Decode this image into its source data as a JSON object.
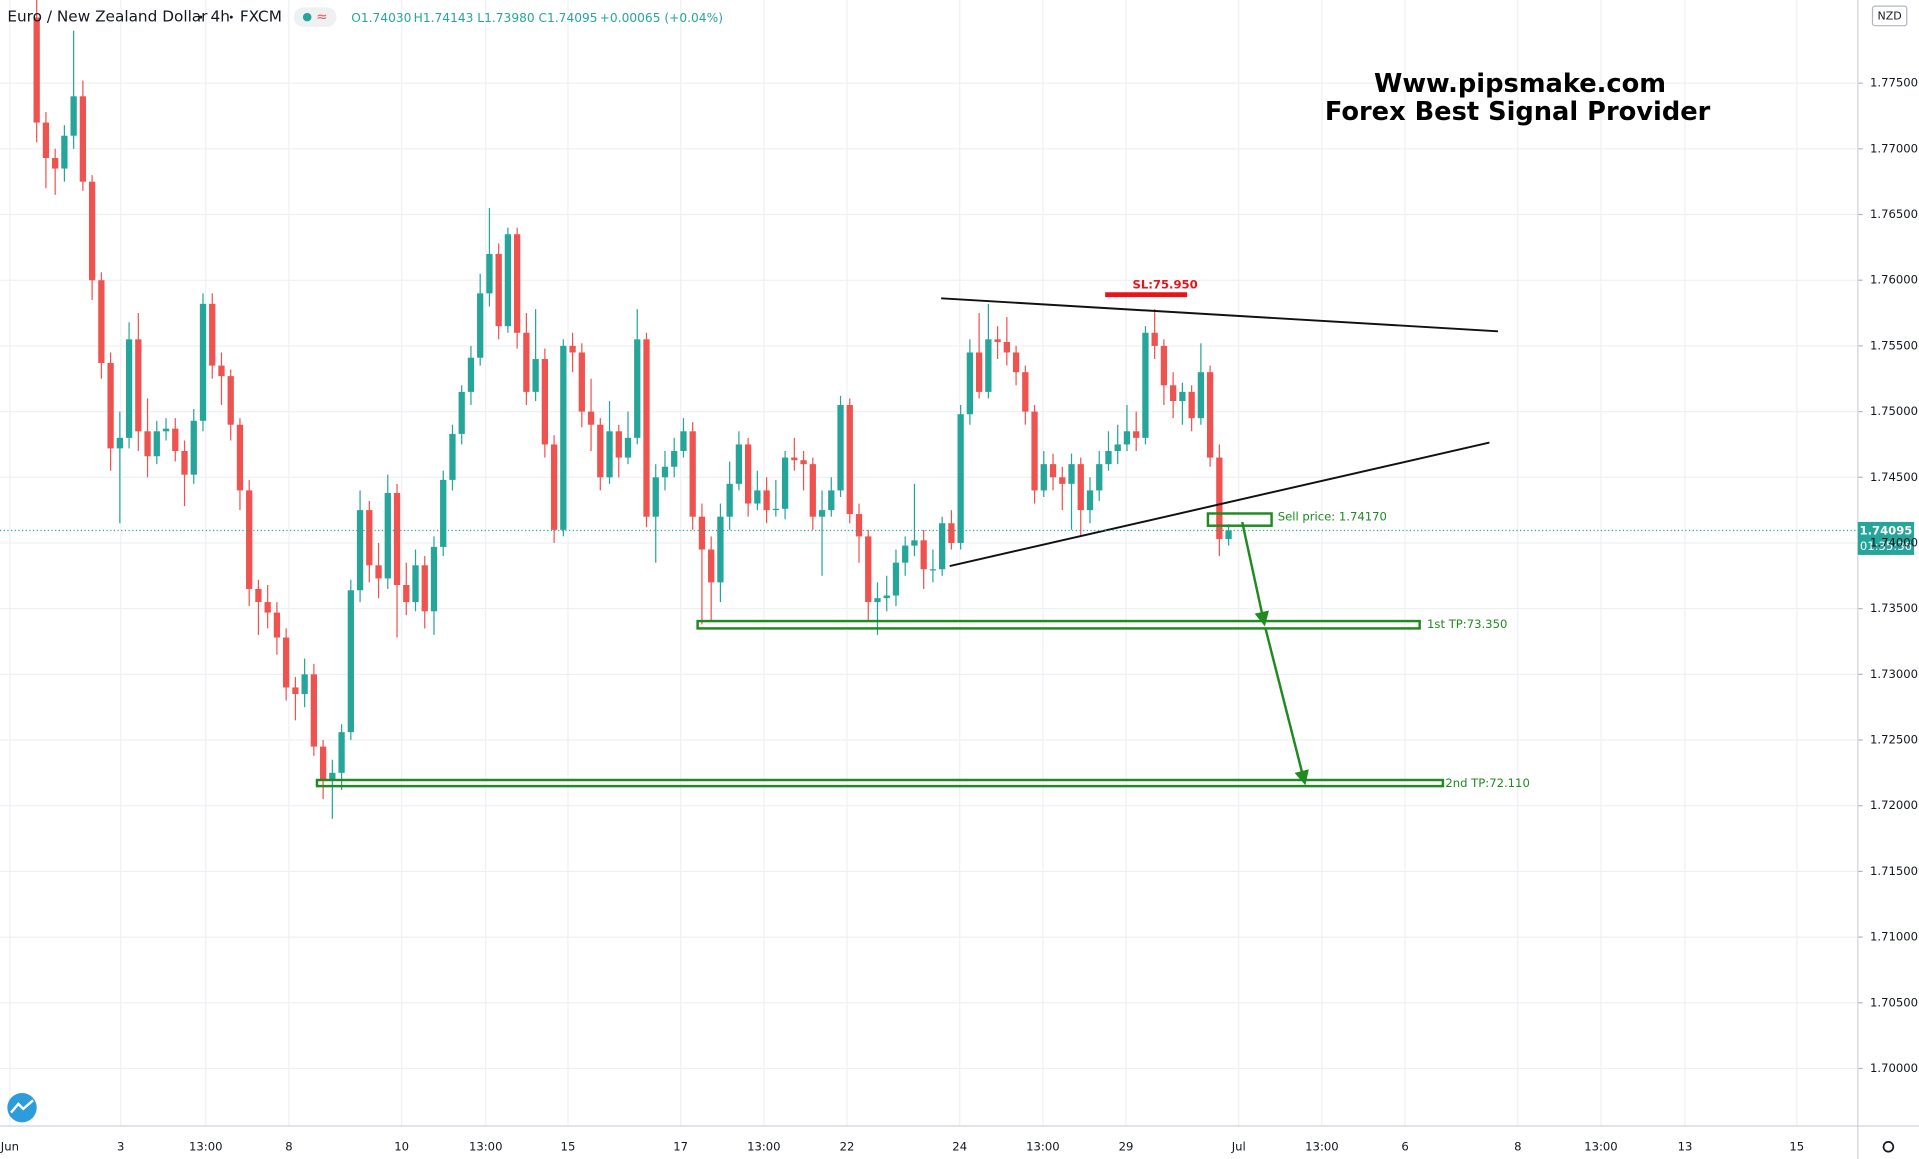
{
  "chart_data": {
    "type": "candlestick",
    "title": "Euro / New Zealand Dollar",
    "interval": "4h",
    "source": "FXCM",
    "ohlc_labels": [
      "O1.74030",
      "H1.74143",
      "L1.73980",
      "C1.74095",
      "+0.00065 (+0.04%)"
    ],
    "currency": "NZD",
    "countdown": "01:35:36",
    "up_color": "#26a69a",
    "down_color": "#ef5350",
    "open": [
      1.78,
      1.772,
      1.7693,
      1.7685,
      1.771,
      1.774,
      1.7675,
      1.76,
      1.7537,
      1.7472,
      1.748,
      1.7555,
      1.7485,
      1.7466,
      1.7485,
      1.7487,
      1.747,
      1.7452,
      1.7493,
      1.7582,
      1.7535,
      1.7527,
      1.749,
      1.744,
      1.7365,
      1.7355,
      1.7347,
      1.7328,
      1.729,
      1.7285,
      1.73,
      1.7245,
      1.722,
      1.7225,
      1.7256,
      1.7364,
      1.7425,
      1.7383,
      1.7373,
      1.7438,
      1.7368,
      1.7355,
      1.7383,
      1.7348,
      1.7397,
      1.7448,
      1.7483,
      1.7515,
      1.7541,
      1.759,
      1.762,
      1.7565,
      1.7635,
      1.756,
      1.7515,
      1.754,
      1.7475,
      1.741,
      1.755,
      1.7545,
      1.75,
      1.749,
      1.745,
      1.7485,
      1.7465,
      1.748,
      1.7555,
      1.742,
      1.745,
      1.7458,
      1.747,
      1.7485,
      1.742,
      1.7395,
      1.737,
      1.742,
      1.7445,
      1.7475,
      1.743,
      1.744,
      1.7425,
      1.7426,
      1.7465,
      1.7463,
      1.746,
      1.742,
      1.7425,
      1.744,
      1.7505,
      1.7422,
      1.7405,
      1.7355,
      1.7358,
      1.736,
      1.7385,
      1.7398,
      1.7402,
      1.738,
      1.738,
      1.7415,
      1.74,
      1.7498,
      1.7545,
      1.7515,
      1.7555,
      1.7553,
      1.7545,
      1.753,
      1.75,
      1.744,
      1.746,
      1.745,
      1.7445,
      1.746,
      1.7425,
      1.744,
      1.746,
      1.747,
      1.7475,
      1.7485,
      1.748,
      1.756,
      1.755,
      1.752,
      1.7508,
      1.7515,
      1.7495,
      1.753,
      1.7465,
      1.7403
    ],
    "high": [
      1.7815,
      1.7728,
      1.77,
      1.7718,
      1.779,
      1.7752,
      1.768,
      1.7606,
      1.7545,
      1.75,
      1.7568,
      1.7575,
      1.751,
      1.7493,
      1.7495,
      1.7495,
      1.7478,
      1.7502,
      1.759,
      1.759,
      1.7545,
      1.7532,
      1.7495,
      1.7448,
      1.7372,
      1.7368,
      1.7355,
      1.7335,
      1.7298,
      1.7312,
      1.7308,
      1.725,
      1.7235,
      1.7262,
      1.7372,
      1.744,
      1.7432,
      1.74,
      1.7452,
      1.7445,
      1.7385,
      1.7395,
      1.739,
      1.7405,
      1.7455,
      1.749,
      1.752,
      1.755,
      1.7605,
      1.7655,
      1.7628,
      1.764,
      1.764,
      1.7575,
      1.7578,
      1.7548,
      1.7482,
      1.7555,
      1.756,
      1.7552,
      1.7525,
      1.7495,
      1.7508,
      1.749,
      1.75,
      1.7578,
      1.756,
      1.746,
      1.747,
      1.748,
      1.7495,
      1.7492,
      1.743,
      1.7405,
      1.743,
      1.7462,
      1.7485,
      1.748,
      1.7455,
      1.745,
      1.7448,
      1.747,
      1.748,
      1.747,
      1.7465,
      1.744,
      1.745,
      1.7512,
      1.751,
      1.743,
      1.741,
      1.737,
      1.7375,
      1.7395,
      1.7405,
      1.7445,
      1.741,
      1.7395,
      1.742,
      1.7425,
      1.7505,
      1.7555,
      1.7575,
      1.7582,
      1.7565,
      1.7572,
      1.755,
      1.7535,
      1.7505,
      1.747,
      1.7468,
      1.7458,
      1.7468,
      1.7465,
      1.745,
      1.747,
      1.7485,
      1.749,
      1.7505,
      1.75,
      1.7565,
      1.7578,
      1.7555,
      1.753,
      1.7522,
      1.752,
      1.7552,
      1.7535,
      1.7475,
      1.74143
    ],
    "low": [
      1.7705,
      1.767,
      1.7665,
      1.7675,
      1.77,
      1.7668,
      1.7585,
      1.7525,
      1.7455,
      1.7415,
      1.7472,
      1.747,
      1.745,
      1.746,
      1.7478,
      1.7462,
      1.7428,
      1.7445,
      1.7485,
      1.7525,
      1.7505,
      1.7478,
      1.7425,
      1.7352,
      1.733,
      1.7335,
      1.7315,
      1.728,
      1.7265,
      1.7275,
      1.7238,
      1.7205,
      1.719,
      1.7212,
      1.725,
      1.7355,
      1.737,
      1.7358,
      1.7365,
      1.7328,
      1.7345,
      1.7348,
      1.7335,
      1.733,
      1.739,
      1.744,
      1.7475,
      1.7505,
      1.7535,
      1.758,
      1.7555,
      1.756,
      1.7548,
      1.7505,
      1.7508,
      1.7465,
      1.74,
      1.7405,
      1.753,
      1.7488,
      1.747,
      1.744,
      1.7445,
      1.745,
      1.746,
      1.7475,
      1.7412,
      1.7385,
      1.744,
      1.745,
      1.7465,
      1.741,
      1.7338,
      1.734,
      1.7355,
      1.741,
      1.744,
      1.742,
      1.7425,
      1.7415,
      1.742,
      1.7418,
      1.7455,
      1.744,
      1.741,
      1.7375,
      1.742,
      1.7435,
      1.7415,
      1.7385,
      1.734,
      1.733,
      1.7348,
      1.7352,
      1.7375,
      1.739,
      1.7365,
      1.737,
      1.7375,
      1.7395,
      1.7395,
      1.749,
      1.751,
      1.751,
      1.754,
      1.7535,
      1.752,
      1.749,
      1.743,
      1.7435,
      1.744,
      1.7425,
      1.741,
      1.7405,
      1.7415,
      1.7432,
      1.7455,
      1.746,
      1.747,
      1.747,
      1.7475,
      1.754,
      1.7505,
      1.7495,
      1.749,
      1.7485,
      1.749,
      1.7458,
      1.739,
      1.7398
    ],
    "close": [
      1.772,
      1.7693,
      1.7685,
      1.771,
      1.774,
      1.7675,
      1.76,
      1.7537,
      1.7472,
      1.748,
      1.7555,
      1.7485,
      1.7466,
      1.7485,
      1.7487,
      1.747,
      1.7452,
      1.7493,
      1.7582,
      1.7535,
      1.7527,
      1.749,
      1.744,
      1.7365,
      1.7355,
      1.7347,
      1.7328,
      1.729,
      1.7285,
      1.73,
      1.7245,
      1.722,
      1.7225,
      1.7256,
      1.7364,
      1.7425,
      1.7383,
      1.7373,
      1.7438,
      1.7368,
      1.7355,
      1.7383,
      1.7348,
      1.7397,
      1.7448,
      1.7483,
      1.7515,
      1.7541,
      1.759,
      1.762,
      1.7565,
      1.7635,
      1.756,
      1.7515,
      1.754,
      1.7475,
      1.741,
      1.755,
      1.7545,
      1.75,
      1.749,
      1.745,
      1.7485,
      1.7465,
      1.748,
      1.7555,
      1.742,
      1.745,
      1.7458,
      1.747,
      1.7485,
      1.742,
      1.7395,
      1.737,
      1.742,
      1.7445,
      1.7475,
      1.743,
      1.744,
      1.7425,
      1.7426,
      1.7465,
      1.7463,
      1.746,
      1.742,
      1.7425,
      1.744,
      1.7505,
      1.7422,
      1.7405,
      1.7355,
      1.7358,
      1.736,
      1.7385,
      1.7398,
      1.7402,
      1.738,
      1.738,
      1.7415,
      1.74,
      1.7498,
      1.7545,
      1.7515,
      1.7555,
      1.7553,
      1.7545,
      1.753,
      1.75,
      1.744,
      1.746,
      1.745,
      1.7445,
      1.746,
      1.7425,
      1.744,
      1.746,
      1.747,
      1.7475,
      1.7485,
      1.748,
      1.756,
      1.755,
      1.752,
      1.7508,
      1.7515,
      1.7495,
      1.753,
      1.7465,
      1.7403,
      1.74095
    ],
    "xlim": [
      -3.97,
      197.1
    ],
    "xticks": [
      {
        "value": -2.9,
        "label": "Jun"
      },
      {
        "value": 9.1,
        "label": "3"
      },
      {
        "value": 18.3,
        "label": "13:00"
      },
      {
        "value": 27.3,
        "label": "8"
      },
      {
        "value": 39.5,
        "label": "10"
      },
      {
        "value": 48.6,
        "label": "13:00"
      },
      {
        "value": 57.5,
        "label": "15"
      },
      {
        "value": 69.7,
        "label": "17"
      },
      {
        "value": 78.7,
        "label": "13:00"
      },
      {
        "value": 87.7,
        "label": "22"
      },
      {
        "value": 99.9,
        "label": "24"
      },
      {
        "value": 108.9,
        "label": "13:00"
      },
      {
        "value": 117.9,
        "label": "29"
      },
      {
        "value": 130.1,
        "label": "Jul"
      },
      {
        "value": 139.1,
        "label": "13:00"
      },
      {
        "value": 148.1,
        "label": "6"
      },
      {
        "value": 160.3,
        "label": "8"
      },
      {
        "value": 169.3,
        "label": "13:00"
      },
      {
        "value": 178.4,
        "label": "13"
      },
      {
        "value": 190.5,
        "label": "15"
      }
    ],
    "ylim": [
      1.69562,
      1.78133
    ],
    "yticks": [
      {
        "value": 1.775,
        "label": "1.77500"
      },
      {
        "value": 1.77,
        "label": "1.77000"
      },
      {
        "value": 1.765,
        "label": "1.76500"
      },
      {
        "value": 1.76,
        "label": "1.76000"
      },
      {
        "value": 1.755,
        "label": "1.75500"
      },
      {
        "value": 1.75,
        "label": "1.75000"
      },
      {
        "value": 1.745,
        "label": "1.74500"
      },
      {
        "value": 1.74,
        "label": "1.74000"
      },
      {
        "value": 1.735,
        "label": "1.73500"
      },
      {
        "value": 1.73,
        "label": "1.73000"
      },
      {
        "value": 1.725,
        "label": "1.72500"
      },
      {
        "value": 1.72,
        "label": "1.72000"
      },
      {
        "value": 1.715,
        "label": "1.71500"
      },
      {
        "value": 1.71,
        "label": "1.71000"
      },
      {
        "value": 1.705,
        "label": "1.70500"
      },
      {
        "value": 1.7,
        "label": "1.70000"
      }
    ],
    "grid": true,
    "annotations": [
      "Www.pipsmake.com",
      "Forex Best Signal Provider",
      "SL:75.950",
      "Sell price: 1.74170",
      "1st TP:73.350",
      "2nd TP:72.110"
    ]
  }
}
